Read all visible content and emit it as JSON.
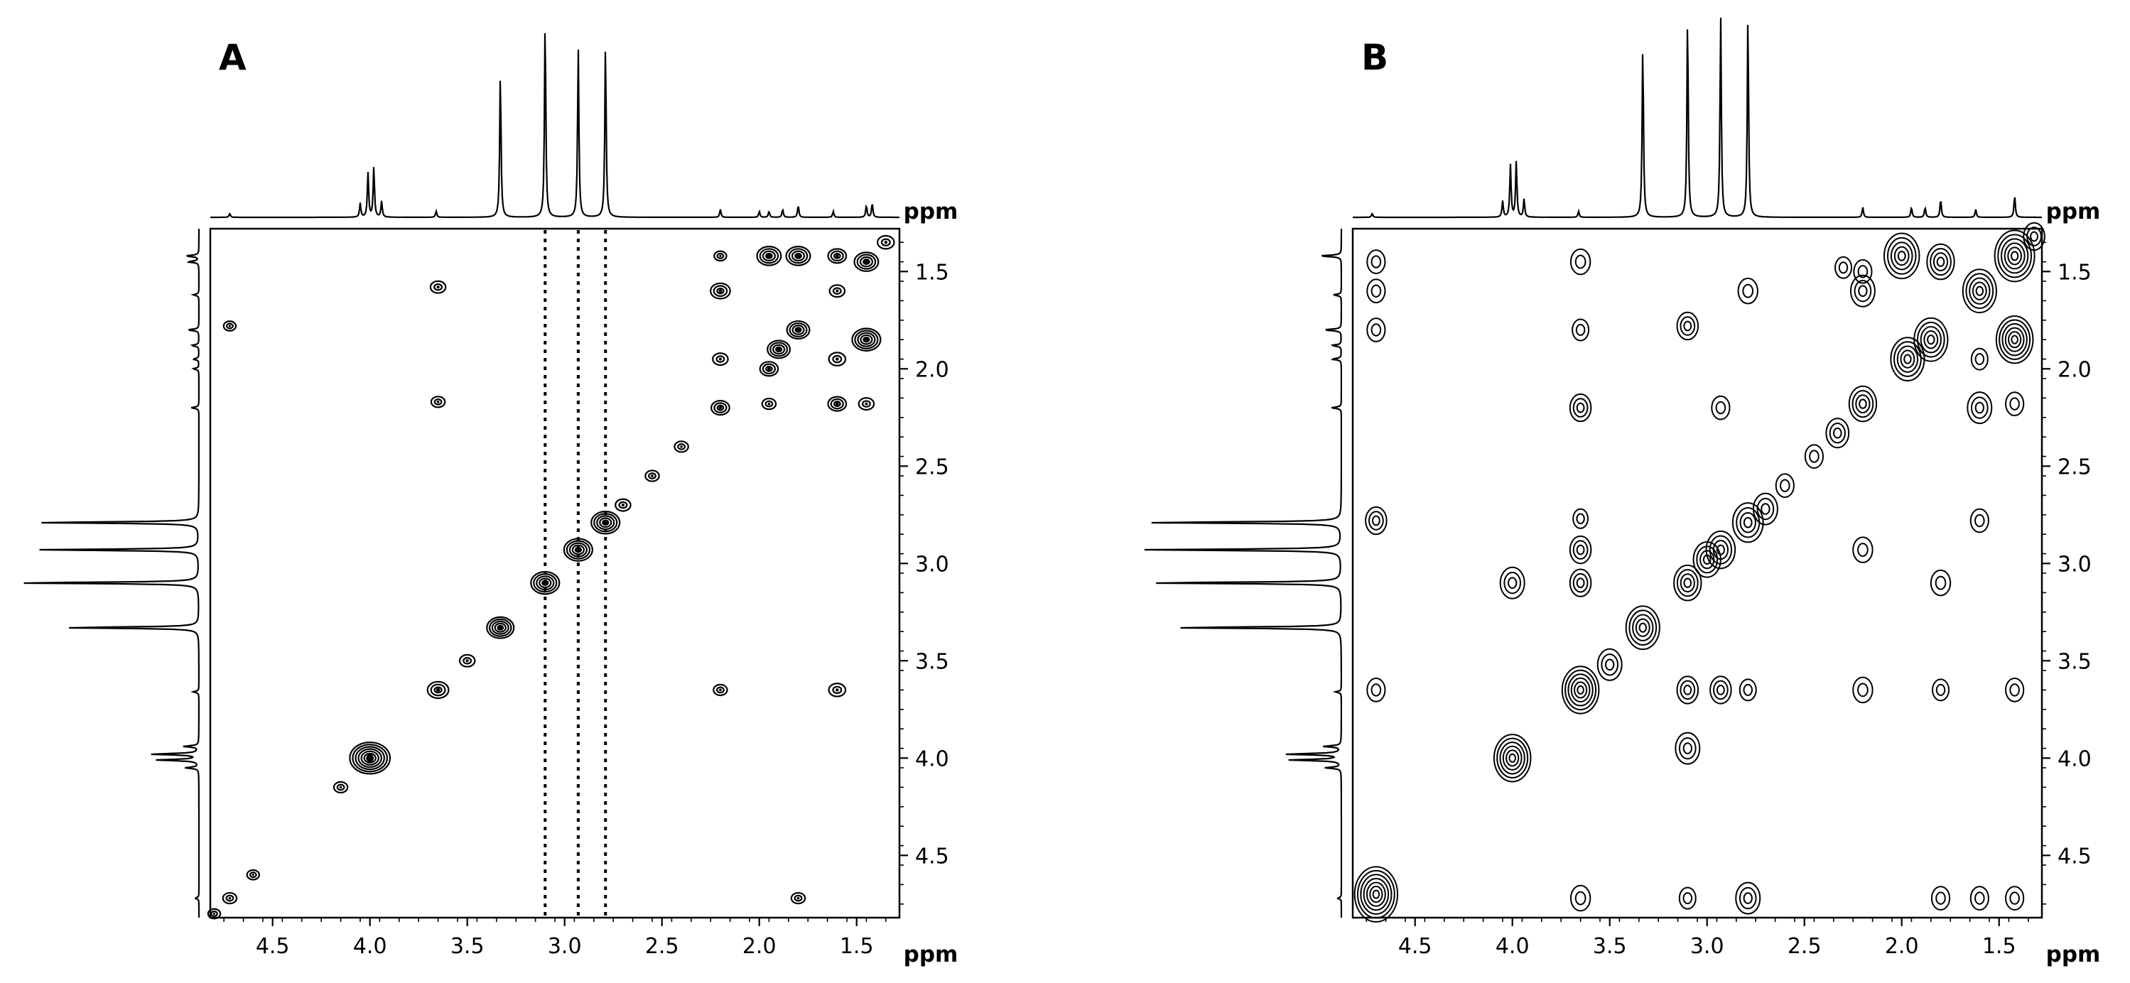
{
  "chart_data": [
    {
      "type": "heatmap",
      "subtype": "2D NMR contour map with 1D projections",
      "panel_label": "A",
      "xlabel": "ppm",
      "ylabel": "ppm",
      "xlim": [
        4.82,
        1.28
      ],
      "ylim": [
        1.28,
        4.82
      ],
      "x_ticks": [
        4.5,
        4.0,
        3.5,
        3.0,
        2.5,
        2.0,
        1.5
      ],
      "y_ticks": [
        1.5,
        2.0,
        2.5,
        3.0,
        3.5,
        4.0,
        4.5
      ],
      "x_tick_labels": [
        "4.5",
        "4.0",
        "3.5",
        "3.0",
        "2.5",
        "2.0",
        "1.5"
      ],
      "y_tick_labels": [
        "1.5",
        "2.0",
        "2.5",
        "3.0",
        "3.5",
        "4.0",
        "4.5"
      ],
      "contour_style": "dense-pointed",
      "projection_peaks": [
        {
          "ppm": 4.72,
          "height": 0.02
        },
        {
          "ppm": 4.05,
          "height": 0.07
        },
        {
          "ppm": 4.01,
          "height": 0.22
        },
        {
          "ppm": 3.98,
          "height": 0.25
        },
        {
          "ppm": 3.94,
          "height": 0.08
        },
        {
          "ppm": 3.66,
          "height": 0.03
        },
        {
          "ppm": 3.33,
          "height": 0.72
        },
        {
          "ppm": 3.1,
          "height": 0.98
        },
        {
          "ppm": 2.93,
          "height": 0.84
        },
        {
          "ppm": 2.79,
          "height": 0.86
        },
        {
          "ppm": 2.2,
          "height": 0.04
        },
        {
          "ppm": 2.0,
          "height": 0.03
        },
        {
          "ppm": 1.95,
          "height": 0.03
        },
        {
          "ppm": 1.88,
          "height": 0.04
        },
        {
          "ppm": 1.8,
          "height": 0.06
        },
        {
          "ppm": 1.62,
          "height": 0.03
        },
        {
          "ppm": 1.45,
          "height": 0.06
        },
        {
          "ppm": 1.42,
          "height": 0.07
        }
      ],
      "vertical_streaks_ppm": [
        3.1,
        2.93,
        2.79
      ],
      "cross_peaks": [
        {
          "x": 4.72,
          "y": 4.72,
          "size": 0.6
        },
        {
          "x": 4.6,
          "y": 4.6,
          "size": 0.5
        },
        {
          "x": 4.8,
          "y": 4.8,
          "size": 0.5
        },
        {
          "x": 4.15,
          "y": 4.15,
          "size": 0.6
        },
        {
          "x": 4.0,
          "y": 4.0,
          "size": 2.4
        },
        {
          "x": 3.65,
          "y": 3.65,
          "size": 1.1
        },
        {
          "x": 3.5,
          "y": 3.5,
          "size": 0.7
        },
        {
          "x": 3.33,
          "y": 3.33,
          "size": 1.5
        },
        {
          "x": 3.1,
          "y": 3.1,
          "size": 1.6
        },
        {
          "x": 2.93,
          "y": 2.93,
          "size": 1.6
        },
        {
          "x": 2.79,
          "y": 2.79,
          "size": 1.6
        },
        {
          "x": 2.7,
          "y": 2.7,
          "size": 0.7
        },
        {
          "x": 2.55,
          "y": 2.55,
          "size": 0.6
        },
        {
          "x": 2.4,
          "y": 2.4,
          "size": 0.6
        },
        {
          "x": 2.2,
          "y": 2.2,
          "size": 0.9
        },
        {
          "x": 1.9,
          "y": 1.9,
          "size": 1.2
        },
        {
          "x": 1.8,
          "y": 1.8,
          "size": 1.2
        },
        {
          "x": 1.45,
          "y": 1.45,
          "size": 1.3
        },
        {
          "x": 1.35,
          "y": 1.35,
          "size": 0.8
        },
        {
          "x": 3.65,
          "y": 1.58,
          "size": 0.7
        },
        {
          "x": 3.65,
          "y": 2.17,
          "size": 0.6
        },
        {
          "x": 4.72,
          "y": 1.78,
          "size": 0.5
        },
        {
          "x": 2.2,
          "y": 1.6,
          "size": 1.0
        },
        {
          "x": 2.2,
          "y": 1.95,
          "size": 0.7
        },
        {
          "x": 2.2,
          "y": 1.42,
          "size": 0.5
        },
        {
          "x": 2.2,
          "y": 3.65,
          "size": 0.6
        },
        {
          "x": 1.95,
          "y": 1.42,
          "size": 1.3
        },
        {
          "x": 1.8,
          "y": 1.42,
          "size": 1.3
        },
        {
          "x": 1.6,
          "y": 1.42,
          "size": 0.9
        },
        {
          "x": 1.95,
          "y": 2.0,
          "size": 0.9
        },
        {
          "x": 1.6,
          "y": 1.95,
          "size": 0.8
        },
        {
          "x": 1.45,
          "y": 1.85,
          "size": 1.6
        },
        {
          "x": 1.95,
          "y": 2.18,
          "size": 0.6
        },
        {
          "x": 1.6,
          "y": 2.18,
          "size": 0.9
        },
        {
          "x": 1.45,
          "y": 2.18,
          "size": 0.7
        },
        {
          "x": 1.8,
          "y": 4.72,
          "size": 0.6
        },
        {
          "x": 1.6,
          "y": 3.65,
          "size": 0.8
        },
        {
          "x": 1.6,
          "y": 1.6,
          "size": 0.7
        }
      ]
    },
    {
      "type": "heatmap",
      "subtype": "2D NMR contour map with 1D projections",
      "panel_label": "B",
      "xlabel": "ppm",
      "ylabel": "ppm",
      "xlim": [
        4.82,
        1.28
      ],
      "ylim": [
        1.28,
        4.82
      ],
      "x_ticks": [
        4.5,
        4.0,
        3.5,
        3.0,
        2.5,
        2.0,
        1.5
      ],
      "y_ticks": [
        1.5,
        2.0,
        2.5,
        3.0,
        3.5,
        4.0,
        4.5
      ],
      "x_tick_labels": [
        "4.5",
        "4.0",
        "3.5",
        "3.0",
        "2.5",
        "2.0",
        "1.5"
      ],
      "y_tick_labels": [
        "1.5",
        "2.0",
        "2.5",
        "3.0",
        "3.5",
        "4.0",
        "4.5"
      ],
      "contour_style": "smooth-rings",
      "projection_peaks": [
        {
          "ppm": 4.72,
          "height": 0.02
        },
        {
          "ppm": 4.05,
          "height": 0.08
        },
        {
          "ppm": 4.01,
          "height": 0.26
        },
        {
          "ppm": 3.98,
          "height": 0.28
        },
        {
          "ppm": 3.94,
          "height": 0.09
        },
        {
          "ppm": 3.66,
          "height": 0.03
        },
        {
          "ppm": 3.33,
          "height": 0.86
        },
        {
          "ppm": 3.1,
          "height": 1.0
        },
        {
          "ppm": 2.93,
          "height": 1.0
        },
        {
          "ppm": 2.79,
          "height": 1.0
        },
        {
          "ppm": 2.2,
          "height": 0.05
        },
        {
          "ppm": 1.95,
          "height": 0.05
        },
        {
          "ppm": 1.88,
          "height": 0.05
        },
        {
          "ppm": 1.8,
          "height": 0.09
        },
        {
          "ppm": 1.62,
          "height": 0.04
        },
        {
          "ppm": 1.42,
          "height": 0.11
        }
      ],
      "vertical_streaks_ppm": [],
      "cross_peaks": [
        {
          "x": 4.7,
          "y": 4.7,
          "size": 2.2
        },
        {
          "x": 4.0,
          "y": 4.0,
          "size": 1.8
        },
        {
          "x": 3.65,
          "y": 3.65,
          "size": 1.8
        },
        {
          "x": 3.5,
          "y": 3.52,
          "size": 1.0
        },
        {
          "x": 3.33,
          "y": 3.33,
          "size": 1.6
        },
        {
          "x": 3.1,
          "y": 3.1,
          "size": 1.2
        },
        {
          "x": 3.0,
          "y": 2.98,
          "size": 1.2
        },
        {
          "x": 2.93,
          "y": 2.93,
          "size": 1.3
        },
        {
          "x": 2.79,
          "y": 2.79,
          "size": 1.4
        },
        {
          "x": 2.7,
          "y": 2.72,
          "size": 1.0
        },
        {
          "x": 2.6,
          "y": 2.6,
          "size": 0.6
        },
        {
          "x": 2.45,
          "y": 2.45,
          "size": 0.6
        },
        {
          "x": 2.33,
          "y": 2.33,
          "size": 0.9
        },
        {
          "x": 2.2,
          "y": 2.18,
          "size": 1.2
        },
        {
          "x": 1.97,
          "y": 1.95,
          "size": 1.6
        },
        {
          "x": 1.85,
          "y": 1.85,
          "size": 1.6
        },
        {
          "x": 1.6,
          "y": 1.6,
          "size": 1.6
        },
        {
          "x": 1.42,
          "y": 1.42,
          "size": 2.0
        },
        {
          "x": 1.32,
          "y": 1.32,
          "size": 0.8
        },
        {
          "x": 4.7,
          "y": 1.45,
          "size": 0.6
        },
        {
          "x": 4.7,
          "y": 1.6,
          "size": 0.6
        },
        {
          "x": 4.7,
          "y": 1.8,
          "size": 0.6
        },
        {
          "x": 4.7,
          "y": 2.78,
          "size": 0.8
        },
        {
          "x": 4.7,
          "y": 3.65,
          "size": 0.6
        },
        {
          "x": 3.65,
          "y": 1.45,
          "size": 0.7
        },
        {
          "x": 3.65,
          "y": 1.8,
          "size": 0.5
        },
        {
          "x": 3.65,
          "y": 2.2,
          "size": 0.8
        },
        {
          "x": 3.65,
          "y": 2.93,
          "size": 0.8
        },
        {
          "x": 3.65,
          "y": 3.1,
          "size": 0.8
        },
        {
          "x": 3.65,
          "y": 4.72,
          "size": 0.7
        },
        {
          "x": 3.65,
          "y": 2.77,
          "size": 0.4
        },
        {
          "x": 4.0,
          "y": 3.1,
          "size": 1.0
        },
        {
          "x": 3.1,
          "y": 1.78,
          "size": 0.8
        },
        {
          "x": 3.1,
          "y": 3.65,
          "size": 0.8
        },
        {
          "x": 3.1,
          "y": 3.95,
          "size": 1.0
        },
        {
          "x": 3.1,
          "y": 4.72,
          "size": 0.5
        },
        {
          "x": 2.93,
          "y": 2.2,
          "size": 0.6
        },
        {
          "x": 2.93,
          "y": 3.65,
          "size": 0.8
        },
        {
          "x": 2.79,
          "y": 1.6,
          "size": 0.7
        },
        {
          "x": 2.79,
          "y": 3.65,
          "size": 0.5
        },
        {
          "x": 2.79,
          "y": 4.72,
          "size": 1.0
        },
        {
          "x": 2.2,
          "y": 1.5,
          "size": 0.6
        },
        {
          "x": 2.2,
          "y": 1.6,
          "size": 1.0
        },
        {
          "x": 2.2,
          "y": 2.93,
          "size": 0.7
        },
        {
          "x": 2.2,
          "y": 3.65,
          "size": 0.7
        },
        {
          "x": 2.0,
          "y": 1.42,
          "size": 1.7
        },
        {
          "x": 1.8,
          "y": 1.45,
          "size": 1.2
        },
        {
          "x": 2.3,
          "y": 1.48,
          "size": 0.5
        },
        {
          "x": 1.8,
          "y": 3.1,
          "size": 0.7
        },
        {
          "x": 1.8,
          "y": 3.65,
          "size": 0.5
        },
        {
          "x": 1.8,
          "y": 4.72,
          "size": 0.6
        },
        {
          "x": 1.6,
          "y": 2.2,
          "size": 1.0
        },
        {
          "x": 1.6,
          "y": 2.78,
          "size": 0.6
        },
        {
          "x": 1.6,
          "y": 4.72,
          "size": 0.6
        },
        {
          "x": 1.42,
          "y": 1.85,
          "size": 1.8
        },
        {
          "x": 1.42,
          "y": 2.18,
          "size": 0.6
        },
        {
          "x": 1.42,
          "y": 3.65,
          "size": 0.6
        },
        {
          "x": 1.42,
          "y": 4.72,
          "size": 0.6
        },
        {
          "x": 1.6,
          "y": 1.95,
          "size": 0.5
        }
      ]
    }
  ]
}
